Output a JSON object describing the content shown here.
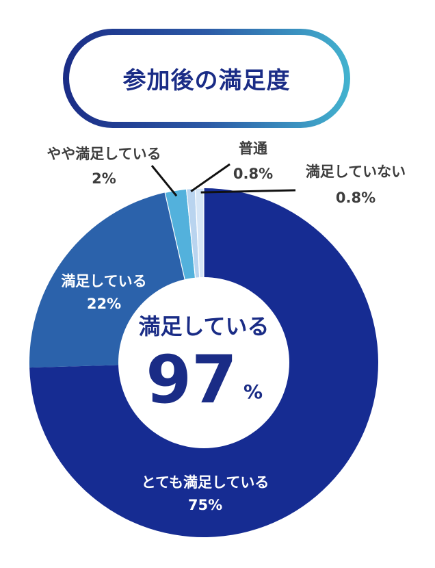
{
  "title": "参加後の満足度",
  "center": {
    "label": "満足している",
    "value": "97",
    "unit": "%"
  },
  "colors": {
    "very_satisfied": "#162c92",
    "satisfied": "#2b62ab",
    "somewhat": "#53b1dc",
    "neutral": "#b9d4ef",
    "not_satisfied": "#d6e6f6",
    "center_text": "#1a2c86",
    "outside_label": "#3d3d3d",
    "inside_label": "#ffffff"
  },
  "chart_data": {
    "type": "pie",
    "title": "参加後の満足度",
    "slices": [
      {
        "label": "とても満足している",
        "value": 75,
        "value_label": "75%"
      },
      {
        "label": "満足している",
        "value": 22,
        "value_label": "22%"
      },
      {
        "label": "やや満足している",
        "value": 2,
        "value_label": "2%"
      },
      {
        "label": "普通",
        "value": 0.8,
        "value_label": "0.8%"
      },
      {
        "label": "満足していない",
        "value": 0.8,
        "value_label": "0.8%"
      }
    ]
  }
}
